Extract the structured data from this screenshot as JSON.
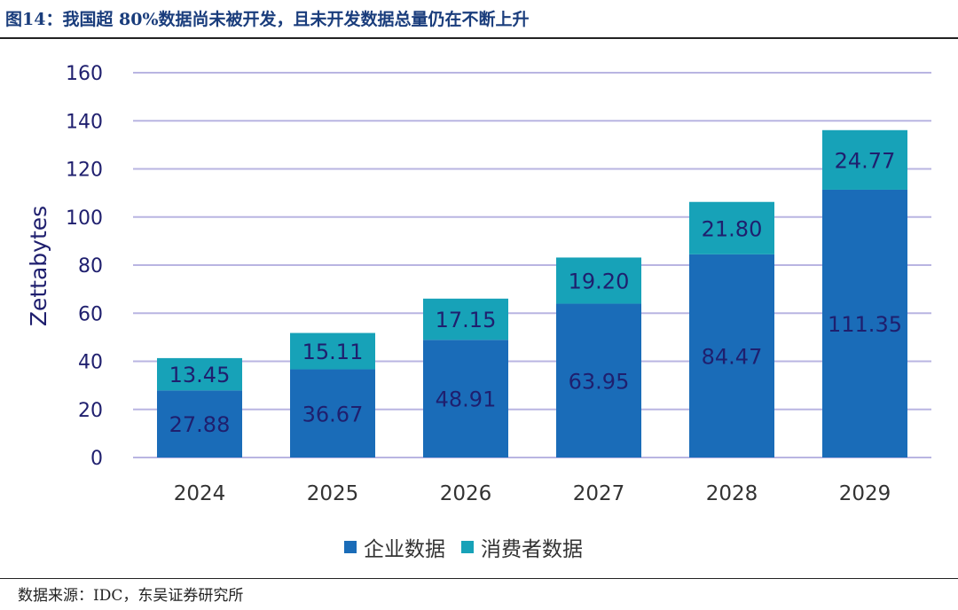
{
  "figure": {
    "title": "图14：我国超 80%数据尚未被开发，且未开发数据总量仍在不断上升",
    "source": "数据来源：IDC，东吴证券研究所"
  },
  "colors": {
    "enterprise": "#1a6cb8",
    "consumer": "#17a2b8",
    "grid": "#b9b5e2",
    "axis_text": "#1f1f6e",
    "bar_label": "#1f1f6e"
  },
  "chart_data": {
    "type": "bar",
    "stacked": true,
    "categories": [
      "2024",
      "2025",
      "2026",
      "2027",
      "2028",
      "2029"
    ],
    "series": [
      {
        "name": "企业数据",
        "values": [
          27.88,
          36.67,
          48.91,
          63.95,
          84.47,
          111.35
        ]
      },
      {
        "name": "消费者数据",
        "values": [
          13.45,
          15.11,
          17.15,
          19.2,
          21.8,
          24.77
        ]
      }
    ],
    "value_labels": [
      [
        "27.88",
        "36.67",
        "48.91",
        "63.95",
        "84.47",
        "111.35"
      ],
      [
        "13.45",
        "15.11",
        "17.15",
        "19.20",
        "21.80",
        "24.77"
      ]
    ],
    "ylabel": "Zettabytes",
    "ylim": [
      0,
      160
    ],
    "yticks": [
      0,
      20,
      40,
      60,
      80,
      100,
      120,
      140,
      160
    ],
    "grid": true,
    "legend_position": "bottom-center"
  }
}
